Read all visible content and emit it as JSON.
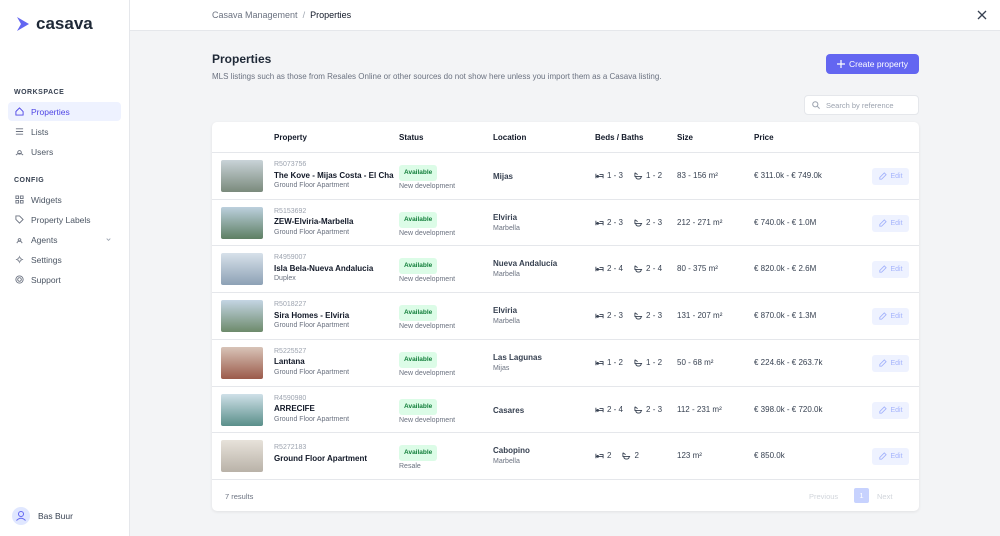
{
  "sidebar": {
    "logo": "casava",
    "sections": [
      {
        "label": "WORKSPACE",
        "items": [
          "Properties",
          "Lists",
          "Users"
        ]
      },
      {
        "label": "CONFIG",
        "items": [
          "Widgets",
          "Property Labels",
          "Agents",
          "Settings",
          "Support"
        ]
      }
    ],
    "user": "Bas Buur"
  },
  "breadcrumb": {
    "parent": "Casava Management",
    "separator": "/",
    "current": "Properties"
  },
  "header": {
    "title": "Properties",
    "subtitle": "MLS listings such as those from Resales Online or other sources do not show here unless you import them as a Casava listing.",
    "button": "Create property",
    "search_placeholder": "Search by reference"
  },
  "table": {
    "columns": [
      "Property",
      "Status",
      "Location",
      "Beds / Baths",
      "Size",
      "Price"
    ],
    "edit_label": "Edit",
    "rows": [
      {
        "ref": "R5073756",
        "name": "The Kove - Mijas Costa - El Cha",
        "kind": "Ground Floor Apartment",
        "status": "Available",
        "market": "New development",
        "location": "Mijas",
        "area": null,
        "beds": "1 - 3",
        "baths": "1 - 2",
        "size": "83 - 156 m²",
        "price": "€ 311.0k - € 749.0k"
      },
      {
        "ref": "R5153692",
        "name": "ZEW-Elviria-Marbella",
        "kind": "Ground Floor Apartment",
        "status": "Available",
        "market": "New development",
        "location": "Elviria",
        "area": "Marbella",
        "beds": "2 - 3",
        "baths": "2 - 3",
        "size": "212 - 271 m²",
        "price": "€ 740.0k - € 1.0M"
      },
      {
        "ref": "R4959007",
        "name": "Isla Bela-Nueva Andalucia",
        "kind": "Duplex",
        "status": "Available",
        "market": "New development",
        "location": "Nueva Andalucía",
        "area": "Marbella",
        "beds": "2 - 4",
        "baths": "2 - 4",
        "size": "80 - 375 m²",
        "price": "€ 820.0k - € 2.6M"
      },
      {
        "ref": "R5018227",
        "name": "Sira Homes - Elviria",
        "kind": "Ground Floor Apartment",
        "status": "Available",
        "market": "New development",
        "location": "Elviria",
        "area": "Marbella",
        "beds": "2 - 3",
        "baths": "2 - 3",
        "size": "131 - 207 m²",
        "price": "€ 870.0k - € 1.3M"
      },
      {
        "ref": "R5225527",
        "name": "Lantana",
        "kind": "Ground Floor Apartment",
        "status": "Available",
        "market": "New development",
        "location": "Las Lagunas",
        "area": "Mijas",
        "beds": "1 - 2",
        "baths": "1 - 2",
        "size": "50 - 68 m²",
        "price": "€ 224.6k - € 263.7k"
      },
      {
        "ref": "R4590980",
        "name": "ARRECIFE",
        "kind": "Ground Floor Apartment",
        "status": "Available",
        "market": "New development",
        "location": "Casares",
        "area": null,
        "beds": "2 - 4",
        "baths": "2 - 3",
        "size": "112 - 231 m²",
        "price": "€ 398.0k - € 720.0k"
      },
      {
        "ref": "R5272183",
        "name": "Ground Floor Apartment",
        "kind": null,
        "status": "Available",
        "market": "Resale",
        "location": "Cabopino",
        "area": "Marbella",
        "beds": "2",
        "baths": "2",
        "size": "123 m²",
        "price": "€ 850.0k"
      }
    ]
  },
  "footer": {
    "results": "7 results",
    "previous": "Previous",
    "page": "1",
    "next": "Next"
  }
}
